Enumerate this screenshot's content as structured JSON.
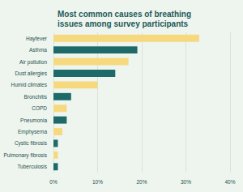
{
  "chart_data": {
    "type": "bar",
    "title": "Most common causes of breathing issues among survey participants",
    "orientation": "horizontal",
    "categories": [
      "Hayfever",
      "Asthma",
      "Air pollution",
      "Dust allergies",
      "Humid climates",
      "Bronchitis",
      "COPD",
      "Pneumonia",
      "Emphysema",
      "Cystic fibrosis",
      "Pulmonary fibrosis",
      "Tuberculosis"
    ],
    "values": [
      33,
      19,
      17,
      14,
      10,
      4,
      3,
      3,
      2,
      1,
      1,
      1
    ],
    "colors": [
      "#f6d97e",
      "#1e6a68",
      "#f6d97e",
      "#1e6a68",
      "#f6d97e",
      "#1e6a68",
      "#f6d97e",
      "#1e6a68",
      "#f6d97e",
      "#1e6a68",
      "#f6d97e",
      "#1e6a68"
    ],
    "xlim": [
      0,
      40
    ],
    "xticks": [
      {
        "value": 0,
        "label": "0%"
      },
      {
        "value": 10,
        "label": "10%"
      },
      {
        "value": 20,
        "label": "20%"
      },
      {
        "value": 30,
        "label": "30%"
      },
      {
        "value": 40,
        "label": "40%"
      }
    ],
    "grid": true
  }
}
